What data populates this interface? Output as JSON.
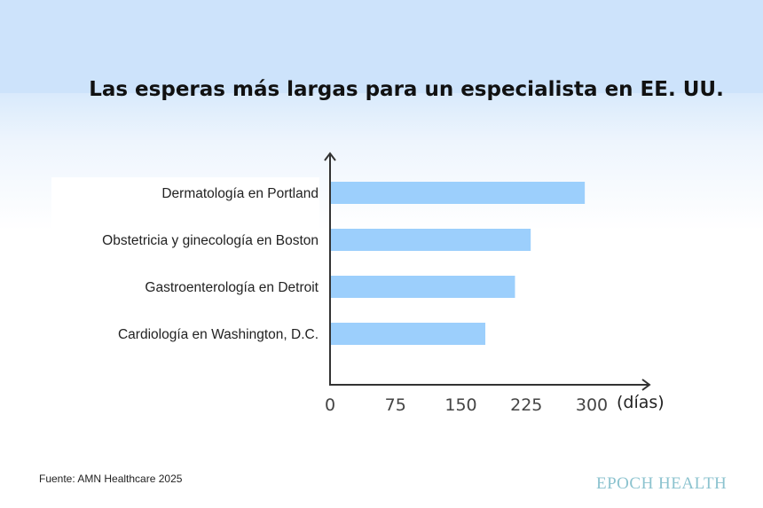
{
  "chart_data": {
    "type": "bar",
    "orientation": "horizontal",
    "title": "Las esperas más largas para un especialista en EE. UU.",
    "categories": [
      "Dermatología en Portland",
      "Obstetricia y ginecología en Boston",
      "Gastroenterología en Detroit",
      "Cardiología en Washington, D.C."
    ],
    "values": [
      292,
      230,
      212,
      178
    ],
    "xlabel": "(días)",
    "xticks": [
      "0",
      "75",
      "150",
      "225",
      "300"
    ],
    "xlim": [
      0,
      300
    ],
    "grid": false,
    "bar_color": "#9ccffc"
  },
  "source": "Fuente: AMN Healthcare 2025",
  "logo": "EPOCH HEALTH"
}
